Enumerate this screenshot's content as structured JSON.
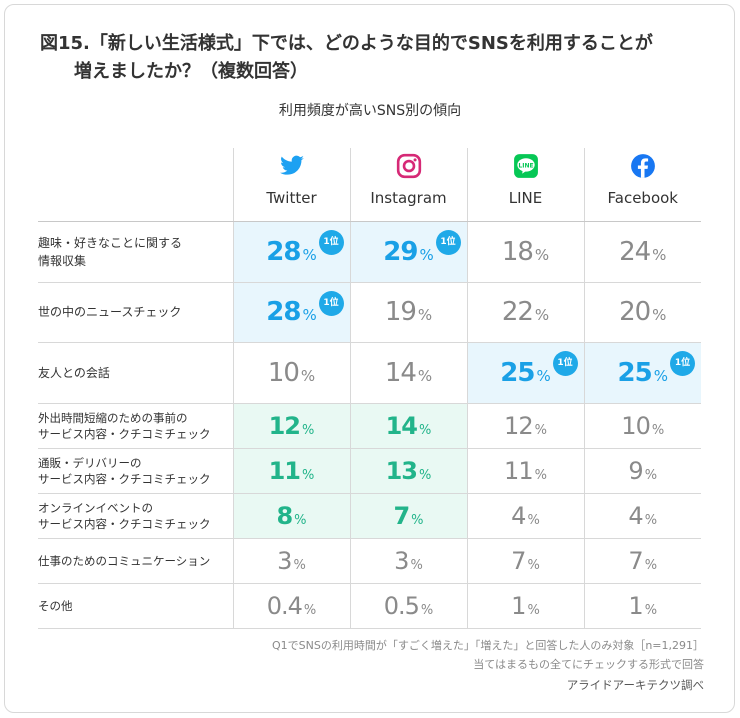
{
  "title_line1": "図15.「新しい生活様式」下では、どのような目的でSNSを利用することが",
  "title_line2": "増えましたか？（複数回答）",
  "chart_data": {
    "type": "table",
    "title": "利用頻度が高いSNS別の傾向",
    "columns": [
      "Twitter",
      "Instagram",
      "LINE",
      "Facebook"
    ],
    "icons": [
      "twitter-icon",
      "instagram-icon",
      "line-icon",
      "facebook-icon"
    ],
    "unit": "%",
    "rank_badge": "1位",
    "rows": [
      {
        "label": "趣味・好きなことに関する\n情報収集",
        "values": [
          "28",
          "29",
          "18",
          "24"
        ],
        "highlight": [
          "blue",
          "blue",
          "",
          ""
        ],
        "badge": [
          true,
          true,
          false,
          false
        ]
      },
      {
        "label": "世の中のニュースチェック",
        "values": [
          "28",
          "19",
          "22",
          "20"
        ],
        "highlight": [
          "blue",
          "",
          "",
          ""
        ],
        "badge": [
          true,
          false,
          false,
          false
        ]
      },
      {
        "label": "友人との会話",
        "values": [
          "10",
          "14",
          "25",
          "25"
        ],
        "highlight": [
          "",
          "",
          "blue",
          "blue"
        ],
        "badge": [
          false,
          false,
          true,
          true
        ]
      },
      {
        "label": "外出時間短縮のための事前の\nサービス内容・クチコミチェック",
        "values": [
          "12",
          "14",
          "12",
          "10"
        ],
        "highlight": [
          "green",
          "green",
          "",
          ""
        ],
        "badge": [
          false,
          false,
          false,
          false
        ]
      },
      {
        "label": "通販・デリバリーの\nサービス内容・クチコミチェック",
        "values": [
          "11",
          "13",
          "11",
          "9"
        ],
        "highlight": [
          "green",
          "green",
          "",
          ""
        ],
        "badge": [
          false,
          false,
          false,
          false
        ]
      },
      {
        "label": "オンラインイベントの\nサービス内容・クチコミチェック",
        "values": [
          "8",
          "7",
          "4",
          "4"
        ],
        "highlight": [
          "green",
          "green",
          "",
          ""
        ],
        "badge": [
          false,
          false,
          false,
          false
        ]
      },
      {
        "label": "仕事のためのコミュニケーション",
        "values": [
          "3",
          "3",
          "7",
          "7"
        ],
        "highlight": [
          "",
          "",
          "",
          ""
        ],
        "badge": [
          false,
          false,
          false,
          false
        ]
      },
      {
        "label": "その他",
        "values": [
          "0.4",
          "0.5",
          "1",
          "1"
        ],
        "highlight": [
          "",
          "",
          "",
          ""
        ],
        "badge": [
          false,
          false,
          false,
          false
        ]
      }
    ]
  },
  "notes": {
    "line1": "Q1でSNSの利用時間が「すごく増えた」「増えた」と回答した人のみ対象［n=1,291］",
    "line2": "当てはまるもの全てにチェックする形式で回答",
    "source": "アライドアーキテクツ調べ"
  },
  "colors": {
    "blue": "#1aa0e6",
    "green": "#22b48a",
    "gray": "#8a8a8a",
    "blue_bg": "#e8f6fd",
    "green_bg": "#e9f9f3",
    "badge": "#1fa9e8"
  }
}
